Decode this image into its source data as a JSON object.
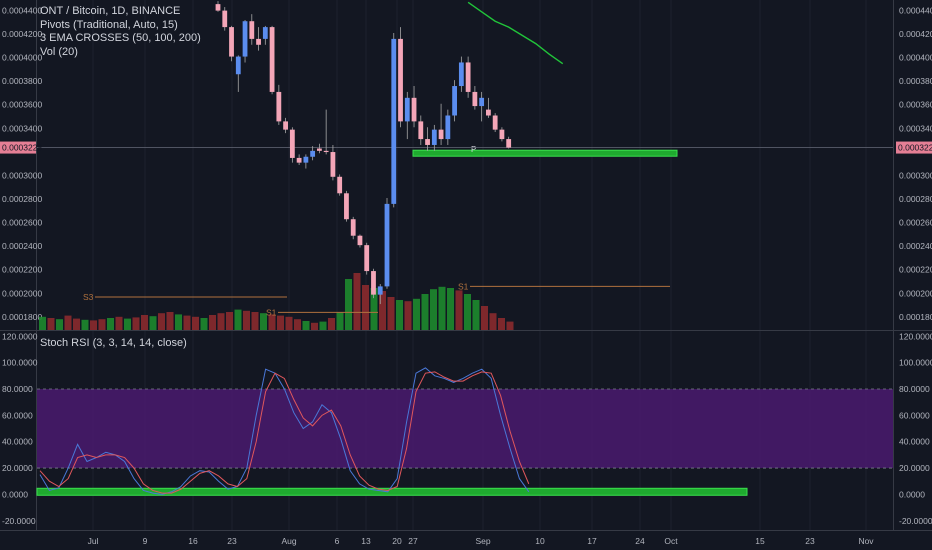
{
  "legend": {
    "symbol": "ONT / Bitcoin, 1D, BINANCE",
    "pivots": "Pivots (Traditional, Auto, 15)",
    "ema": "3 EMA CROSSES (50, 100, 200)",
    "vol": "Vol (20)",
    "stoch": "Stoch RSI (3, 3, 14, 14, close)"
  },
  "colors": {
    "background": "#131722",
    "up": "#5b8def",
    "down": "#f4a6b8",
    "vol_up": "#1e8a2e",
    "vol_down": "#8b2a2e",
    "ema": "#21c43a",
    "stoch_k": "#4a78d8",
    "stoch_d": "#e0575c",
    "stoch_band": "#4a1a6e",
    "support_zone": "#1faa2f",
    "pivot_line": "#b0713e",
    "price_badge": "#e57f95"
  },
  "chart_data": [
    {
      "type": "candlestick",
      "title": "ONT / Bitcoin, 1D, BINANCE",
      "x_ticks": [
        "Jul",
        "9",
        "16",
        "23",
        "Aug",
        "6",
        "13",
        "20",
        "27",
        "Sep",
        "10",
        "17",
        "24",
        "Oct",
        "15",
        "23",
        "Nov"
      ],
      "y_ticks": [
        "0.0004400",
        "0.0004200",
        "0.0004000",
        "0.0003800",
        "0.0003600",
        "0.0003400",
        "0.0003228",
        "0.0003000",
        "0.0002800",
        "0.0002600",
        "0.0002400",
        "0.0002200",
        "0.0002000",
        "0.0001800"
      ],
      "ylim": [
        0.000168,
        0.000448
      ],
      "last_price": "0.0003228",
      "candles": [
        {
          "x": 0,
          "o": 0.0004445,
          "h": 0.000447,
          "l": 0.000438,
          "c": 0.000439
        },
        {
          "x": 1,
          "o": 0.000439,
          "h": 0.000442,
          "l": 0.000422,
          "c": 0.000425
        },
        {
          "x": 2,
          "o": 0.000425,
          "h": 0.000426,
          "l": 0.000396,
          "c": 0.0004
        },
        {
          "x": 3,
          "o": 0.000385,
          "h": 0.000401,
          "l": 0.00037,
          "c": 0.0004
        },
        {
          "x": 4,
          "o": 0.0004,
          "h": 0.000431,
          "l": 0.000395,
          "c": 0.00043
        },
        {
          "x": 5,
          "o": 0.00043,
          "h": 0.000436,
          "l": 0.00041,
          "c": 0.000415
        },
        {
          "x": 6,
          "o": 0.000415,
          "h": 0.000425,
          "l": 0.000405,
          "c": 0.00041
        },
        {
          "x": 7,
          "o": 0.000415,
          "h": 0.000426,
          "l": 0.00041,
          "c": 0.000425
        },
        {
          "x": 8,
          "o": 0.000425,
          "h": 0.000426,
          "l": 0.000368,
          "c": 0.00037
        },
        {
          "x": 9,
          "o": 0.00037,
          "h": 0.000376,
          "l": 0.000342,
          "c": 0.000345
        },
        {
          "x": 10,
          "o": 0.000345,
          "h": 0.000348,
          "l": 0.000335,
          "c": 0.000338
        },
        {
          "x": 11,
          "o": 0.000338,
          "h": 0.00034,
          "l": 0.00031,
          "c": 0.000314
        },
        {
          "x": 12,
          "o": 0.000314,
          "h": 0.000317,
          "l": 0.000308,
          "c": 0.00031
        },
        {
          "x": 13,
          "o": 0.00031,
          "h": 0.000317,
          "l": 0.000305,
          "c": 0.000315
        },
        {
          "x": 14,
          "o": 0.000315,
          "h": 0.000324,
          "l": 0.000312,
          "c": 0.00032
        },
        {
          "x": 15,
          "o": 0.000322,
          "h": 0.000326,
          "l": 0.000318,
          "c": 0.00032
        },
        {
          "x": 16,
          "o": 0.00032,
          "h": 0.000355,
          "l": 0.000317,
          "c": 0.000319
        },
        {
          "x": 17,
          "o": 0.000319,
          "h": 0.000325,
          "l": 0.000295,
          "c": 0.000298
        },
        {
          "x": 18,
          "o": 0.000298,
          "h": 0.0003,
          "l": 0.000282,
          "c": 0.000284
        },
        {
          "x": 19,
          "o": 0.000284,
          "h": 0.000286,
          "l": 0.00026,
          "c": 0.000262
        },
        {
          "x": 20,
          "o": 0.000262,
          "h": 0.000264,
          "l": 0.000245,
          "c": 0.000248
        },
        {
          "x": 21,
          "o": 0.000248,
          "h": 0.000249,
          "l": 0.000238,
          "c": 0.00024
        },
        {
          "x": 22,
          "o": 0.00024,
          "h": 0.000242,
          "l": 0.000215,
          "c": 0.000218
        },
        {
          "x": 23,
          "o": 0.000218,
          "h": 0.00022,
          "l": 0.000195,
          "c": 0.000198
        },
        {
          "x": 24,
          "o": 0.000198,
          "h": 0.000207,
          "l": 0.00019,
          "c": 0.000205
        },
        {
          "x": 25,
          "o": 0.000205,
          "h": 0.00028,
          "l": 0.000203,
          "c": 0.000275
        },
        {
          "x": 26,
          "o": 0.000275,
          "h": 0.00042,
          "l": 0.000272,
          "c": 0.000415
        },
        {
          "x": 27,
          "o": 0.000415,
          "h": 0.000425,
          "l": 0.00034,
          "c": 0.000345
        },
        {
          "x": 28,
          "o": 0.000345,
          "h": 0.00037,
          "l": 0.00033,
          "c": 0.000365
        },
        {
          "x": 29,
          "o": 0.000365,
          "h": 0.000375,
          "l": 0.00034,
          "c": 0.000345
        },
        {
          "x": 30,
          "o": 0.000345,
          "h": 0.00035,
          "l": 0.000325,
          "c": 0.00033
        },
        {
          "x": 31,
          "o": 0.00033,
          "h": 0.00034,
          "l": 0.00032,
          "c": 0.000325
        },
        {
          "x": 32,
          "o": 0.000325,
          "h": 0.000342,
          "l": 0.00032,
          "c": 0.000338
        },
        {
          "x": 33,
          "o": 0.000338,
          "h": 0.00036,
          "l": 0.000325,
          "c": 0.00033
        },
        {
          "x": 34,
          "o": 0.00033,
          "h": 0.000355,
          "l": 0.000325,
          "c": 0.00035
        },
        {
          "x": 35,
          "o": 0.00035,
          "h": 0.00038,
          "l": 0.000345,
          "c": 0.000375
        },
        {
          "x": 36,
          "o": 0.000375,
          "h": 0.0004,
          "l": 0.00037,
          "c": 0.000395
        },
        {
          "x": 37,
          "o": 0.000395,
          "h": 0.0004,
          "l": 0.000365,
          "c": 0.00037
        },
        {
          "x": 38,
          "o": 0.00037,
          "h": 0.000375,
          "l": 0.000355,
          "c": 0.000358
        },
        {
          "x": 39,
          "o": 0.000358,
          "h": 0.00037,
          "l": 0.000345,
          "c": 0.000365
        },
        {
          "x": 40,
          "o": 0.000355,
          "h": 0.000365,
          "l": 0.000348,
          "c": 0.00035
        },
        {
          "x": 41,
          "o": 0.00035,
          "h": 0.000352,
          "l": 0.000336,
          "c": 0.000338
        },
        {
          "x": 42,
          "o": 0.000338,
          "h": 0.00034,
          "l": 0.000328,
          "c": 0.00033
        },
        {
          "x": 43,
          "o": 0.00033,
          "h": 0.000332,
          "l": 0.000322,
          "c": 0.0003228
        }
      ],
      "ema_line": [
        {
          "x": 37,
          "y": 0.000446
        },
        {
          "x": 39,
          "y": 0.000438
        },
        {
          "x": 41,
          "y": 0.00043
        },
        {
          "x": 43,
          "y": 0.000425
        },
        {
          "x": 45,
          "y": 0.000418
        },
        {
          "x": 47,
          "y": 0.000411
        },
        {
          "x": 49,
          "y": 0.000402
        },
        {
          "x": 51,
          "y": 0.000394
        }
      ],
      "support_zone": {
        "label": "P",
        "y": 0.000318
      },
      "pivots": [
        {
          "label": "S3",
          "y": 0.000196
        },
        {
          "label": "S1",
          "y": 0.000183
        },
        {
          "label": "S1",
          "y": 0.000205
        }
      ],
      "volume": [
        22,
        20,
        18,
        24,
        19,
        17,
        16,
        18,
        20,
        22,
        19,
        21,
        25,
        23,
        28,
        30,
        26,
        24,
        22,
        20,
        25,
        28,
        30,
        34,
        32,
        30,
        28,
        26,
        24,
        22,
        18,
        15,
        12,
        14,
        20,
        30,
        85,
        95,
        75,
        70,
        65,
        55,
        50,
        48,
        52,
        60,
        68,
        72,
        70,
        66,
        60,
        50,
        40,
        28,
        20,
        14
      ],
      "volume_up": [
        true,
        false,
        true,
        false,
        false,
        true,
        false,
        false,
        true,
        false,
        true,
        false,
        false,
        true,
        false,
        false,
        true,
        false,
        false,
        true,
        false,
        false,
        false,
        true,
        false,
        false,
        true,
        false,
        false,
        false,
        false,
        true,
        false,
        true,
        false,
        true,
        true,
        false,
        false,
        true,
        false,
        false,
        true,
        false,
        true,
        true,
        true,
        true,
        true,
        false,
        true,
        true,
        false,
        false,
        false,
        false
      ]
    },
    {
      "type": "line",
      "title": "Stoch RSI (3, 3, 14, 14, close)",
      "y_ticks": [
        "120.0000",
        "100.0000",
        "80.0000",
        "60.0000",
        "40.0000",
        "20.0000",
        "0.0000",
        "-20.0000"
      ],
      "ylim": [
        -27,
        124
      ],
      "band": [
        20,
        80
      ],
      "zone_y": 2,
      "series": [
        {
          "values": [
            15,
            3,
            5,
            20,
            38,
            25,
            28,
            32,
            30,
            25,
            12,
            3,
            1,
            0,
            2,
            6,
            14,
            18,
            17,
            10,
            4,
            6,
            20,
            60,
            95,
            92,
            80,
            62,
            50,
            55,
            68,
            62,
            42,
            18,
            8,
            4,
            3,
            2,
            12,
            55,
            92,
            96,
            90,
            88,
            85,
            88,
            92,
            95,
            88,
            60,
            35,
            12,
            2
          ]
        },
        {
          "values": [
            18,
            10,
            6,
            12,
            28,
            30,
            28,
            30,
            30,
            28,
            20,
            8,
            3,
            1,
            1,
            4,
            10,
            16,
            18,
            14,
            8,
            6,
            12,
            40,
            78,
            92,
            88,
            72,
            58,
            52,
            60,
            64,
            52,
            30,
            14,
            7,
            4,
            3,
            6,
            35,
            78,
            92,
            93,
            89,
            86,
            86,
            90,
            93,
            92,
            75,
            48,
            25,
            8
          ]
        }
      ]
    }
  ]
}
